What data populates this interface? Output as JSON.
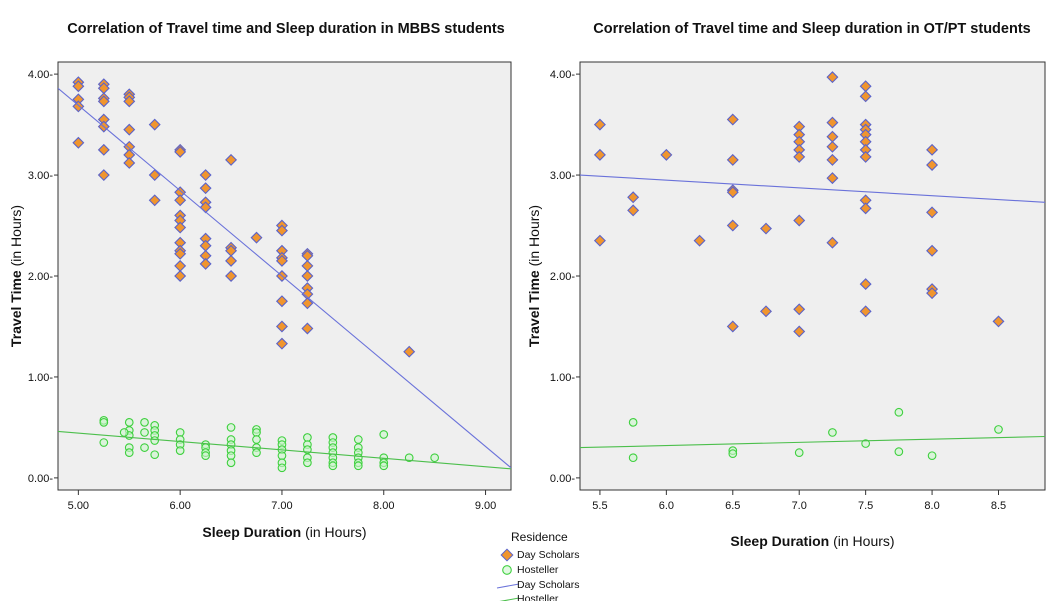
{
  "chart_data": [
    {
      "type": "scatter",
      "title": "Correlation of Travel time and Sleep duration in MBBS students",
      "xlabel": {
        "bold": "Sleep Duration",
        "normal": " (in Hours)"
      },
      "ylabel": {
        "bold": "Travel Time",
        "normal": " (in Hours)"
      },
      "xlim": [
        4.8,
        9.25
      ],
      "ylim": [
        -0.12,
        4.12
      ],
      "xticks": [
        5.0,
        6.0,
        7.0,
        8.0,
        9.0
      ],
      "xtick_labels": [
        "5.00",
        "6.00",
        "7.00",
        "8.00",
        "9.00"
      ],
      "yticks": [
        0,
        1,
        2,
        3,
        4
      ],
      "ytick_labels": [
        "0.00-",
        "1.00-",
        "2.00-",
        "3.00-",
        "4.00-"
      ],
      "grid": false,
      "series": [
        {
          "name": "Day Scholars",
          "marker": "diamond",
          "points": [
            [
              5.0,
              3.92
            ],
            [
              5.0,
              3.88
            ],
            [
              5.0,
              3.75
            ],
            [
              5.0,
              3.68
            ],
            [
              5.0,
              3.32
            ],
            [
              5.25,
              3.9
            ],
            [
              5.25,
              3.86
            ],
            [
              5.25,
              3.76
            ],
            [
              5.25,
              3.73
            ],
            [
              5.25,
              3.55
            ],
            [
              5.25,
              3.48
            ],
            [
              5.25,
              3.25
            ],
            [
              5.25,
              3.0
            ],
            [
              5.5,
              3.8
            ],
            [
              5.5,
              3.77
            ],
            [
              5.5,
              3.73
            ],
            [
              5.5,
              3.45
            ],
            [
              5.5,
              3.28
            ],
            [
              5.5,
              3.2
            ],
            [
              5.5,
              3.12
            ],
            [
              5.75,
              3.5
            ],
            [
              5.75,
              3.0
            ],
            [
              5.75,
              2.75
            ],
            [
              6.0,
              3.25
            ],
            [
              6.0,
              3.23
            ],
            [
              6.0,
              2.83
            ],
            [
              6.0,
              2.75
            ],
            [
              6.0,
              2.6
            ],
            [
              6.0,
              2.55
            ],
            [
              6.0,
              2.48
            ],
            [
              6.0,
              2.33
            ],
            [
              6.0,
              2.25
            ],
            [
              6.0,
              2.22
            ],
            [
              6.0,
              2.1
            ],
            [
              6.0,
              2.0
            ],
            [
              6.25,
              3.0
            ],
            [
              6.25,
              2.87
            ],
            [
              6.25,
              2.73
            ],
            [
              6.25,
              2.68
            ],
            [
              6.25,
              2.37
            ],
            [
              6.25,
              2.3
            ],
            [
              6.25,
              2.2
            ],
            [
              6.25,
              2.12
            ],
            [
              6.5,
              3.15
            ],
            [
              6.5,
              2.28
            ],
            [
              6.5,
              2.25
            ],
            [
              6.5,
              2.15
            ],
            [
              6.5,
              2.0
            ],
            [
              6.75,
              2.38
            ],
            [
              7.0,
              2.5
            ],
            [
              7.0,
              2.45
            ],
            [
              7.0,
              2.25
            ],
            [
              7.0,
              2.18
            ],
            [
              7.0,
              2.15
            ],
            [
              7.0,
              2.0
            ],
            [
              7.0,
              1.75
            ],
            [
              7.0,
              1.5
            ],
            [
              7.0,
              1.33
            ],
            [
              7.25,
              2.22
            ],
            [
              7.25,
              2.2
            ],
            [
              7.25,
              2.1
            ],
            [
              7.25,
              2.0
            ],
            [
              7.25,
              1.88
            ],
            [
              7.25,
              1.82
            ],
            [
              7.25,
              1.73
            ],
            [
              7.25,
              1.48
            ],
            [
              8.25,
              1.25
            ]
          ],
          "fit": {
            "x": [
              4.8,
              9.25
            ],
            "y": [
              3.86,
              0.1
            ]
          }
        },
        {
          "name": "Hosteller",
          "marker": "circle",
          "points": [
            [
              5.25,
              0.57
            ],
            [
              5.25,
              0.55
            ],
            [
              5.25,
              0.35
            ],
            [
              5.5,
              0.55
            ],
            [
              5.5,
              0.47
            ],
            [
              5.5,
              0.42
            ],
            [
              5.5,
              0.3
            ],
            [
              5.5,
              0.25
            ],
            [
              5.45,
              0.45
            ],
            [
              5.65,
              0.55
            ],
            [
              5.65,
              0.45
            ],
            [
              5.65,
              0.3
            ],
            [
              5.75,
              0.52
            ],
            [
              5.75,
              0.47
            ],
            [
              5.75,
              0.42
            ],
            [
              5.75,
              0.37
            ],
            [
              5.75,
              0.23
            ],
            [
              6.0,
              0.45
            ],
            [
              6.0,
              0.38
            ],
            [
              6.0,
              0.33
            ],
            [
              6.0,
              0.27
            ],
            [
              6.25,
              0.33
            ],
            [
              6.25,
              0.3
            ],
            [
              6.25,
              0.25
            ],
            [
              6.25,
              0.22
            ],
            [
              6.5,
              0.5
            ],
            [
              6.5,
              0.38
            ],
            [
              6.5,
              0.33
            ],
            [
              6.5,
              0.27
            ],
            [
              6.5,
              0.22
            ],
            [
              6.5,
              0.15
            ],
            [
              6.75,
              0.48
            ],
            [
              6.75,
              0.45
            ],
            [
              6.75,
              0.38
            ],
            [
              6.75,
              0.3
            ],
            [
              6.75,
              0.25
            ],
            [
              7.0,
              0.37
            ],
            [
              7.0,
              0.33
            ],
            [
              7.0,
              0.28
            ],
            [
              7.0,
              0.22
            ],
            [
              7.0,
              0.15
            ],
            [
              7.0,
              0.1
            ],
            [
              7.25,
              0.4
            ],
            [
              7.25,
              0.33
            ],
            [
              7.25,
              0.28
            ],
            [
              7.25,
              0.2
            ],
            [
              7.25,
              0.15
            ],
            [
              7.5,
              0.4
            ],
            [
              7.5,
              0.35
            ],
            [
              7.5,
              0.3
            ],
            [
              7.5,
              0.25
            ],
            [
              7.5,
              0.2
            ],
            [
              7.5,
              0.15
            ],
            [
              7.5,
              0.12
            ],
            [
              7.75,
              0.38
            ],
            [
              7.75,
              0.3
            ],
            [
              7.75,
              0.25
            ],
            [
              7.75,
              0.2
            ],
            [
              7.75,
              0.15
            ],
            [
              7.75,
              0.12
            ],
            [
              8.0,
              0.43
            ],
            [
              8.0,
              0.2
            ],
            [
              8.0,
              0.15
            ],
            [
              8.0,
              0.12
            ],
            [
              8.25,
              0.2
            ],
            [
              8.5,
              0.2
            ]
          ],
          "fit": {
            "x": [
              4.8,
              9.25
            ],
            "y": [
              0.46,
              0.09
            ]
          }
        }
      ]
    },
    {
      "type": "scatter",
      "title": "Correlation of Travel time and Sleep duration in OT/PT students",
      "xlabel": {
        "bold": "Sleep Duration",
        "normal": " (in Hours)"
      },
      "ylabel": {
        "bold": "Travel Time",
        "normal": " (in Hours)"
      },
      "xlim": [
        5.35,
        8.85
      ],
      "ylim": [
        -0.12,
        4.12
      ],
      "xticks": [
        5.5,
        6.0,
        6.5,
        7.0,
        7.5,
        8.0,
        8.5
      ],
      "xtick_labels": [
        "5.5",
        "6.0",
        "6.5",
        "7.0",
        "7.5",
        "8.0",
        "8.5"
      ],
      "yticks": [
        0,
        1,
        2,
        3,
        4
      ],
      "ytick_labels": [
        "0.00-",
        "1.00-",
        "2.00-",
        "3.00-",
        "4.00-"
      ],
      "grid": false,
      "series": [
        {
          "name": "Day Scholars",
          "marker": "diamond",
          "points": [
            [
              5.5,
              3.5
            ],
            [
              5.5,
              3.2
            ],
            [
              5.5,
              2.35
            ],
            [
              5.75,
              2.78
            ],
            [
              5.75,
              2.65
            ],
            [
              6.0,
              3.2
            ],
            [
              6.25,
              2.35
            ],
            [
              6.5,
              3.55
            ],
            [
              6.5,
              3.15
            ],
            [
              6.5,
              2.85
            ],
            [
              6.5,
              2.83
            ],
            [
              6.5,
              2.5
            ],
            [
              6.5,
              1.5
            ],
            [
              6.75,
              2.47
            ],
            [
              6.75,
              1.65
            ],
            [
              7.0,
              3.48
            ],
            [
              7.0,
              3.4
            ],
            [
              7.0,
              3.33
            ],
            [
              7.0,
              3.25
            ],
            [
              7.0,
              3.18
            ],
            [
              7.0,
              2.55
            ],
            [
              7.0,
              1.67
            ],
            [
              7.0,
              1.45
            ],
            [
              7.25,
              3.97
            ],
            [
              7.25,
              3.52
            ],
            [
              7.25,
              3.38
            ],
            [
              7.25,
              3.28
            ],
            [
              7.25,
              3.15
            ],
            [
              7.25,
              2.97
            ],
            [
              7.25,
              2.33
            ],
            [
              7.5,
              3.88
            ],
            [
              7.5,
              3.78
            ],
            [
              7.5,
              3.5
            ],
            [
              7.5,
              3.45
            ],
            [
              7.5,
              3.4
            ],
            [
              7.5,
              3.33
            ],
            [
              7.5,
              3.25
            ],
            [
              7.5,
              3.18
            ],
            [
              7.5,
              2.75
            ],
            [
              7.5,
              2.67
            ],
            [
              7.5,
              1.92
            ],
            [
              7.5,
              1.65
            ],
            [
              8.0,
              3.25
            ],
            [
              8.0,
              3.1
            ],
            [
              8.0,
              2.63
            ],
            [
              8.0,
              2.25
            ],
            [
              8.0,
              1.87
            ],
            [
              8.0,
              1.83
            ],
            [
              8.5,
              1.55
            ]
          ],
          "fit": {
            "x": [
              5.35,
              8.85
            ],
            "y": [
              3.0,
              2.73
            ]
          }
        },
        {
          "name": "Hosteller",
          "marker": "circle",
          "points": [
            [
              5.75,
              0.55
            ],
            [
              5.75,
              0.2
            ],
            [
              6.5,
              0.27
            ],
            [
              6.5,
              0.24
            ],
            [
              7.0,
              0.25
            ],
            [
              7.25,
              0.45
            ],
            [
              7.5,
              0.34
            ],
            [
              7.75,
              0.65
            ],
            [
              7.75,
              0.26
            ],
            [
              8.0,
              0.22
            ],
            [
              8.5,
              0.48
            ]
          ],
          "fit": {
            "x": [
              5.35,
              8.85
            ],
            "y": [
              0.3,
              0.41
            ]
          }
        }
      ]
    }
  ],
  "legend": {
    "title": "Residence",
    "entries": [
      {
        "label": "Day Scholars",
        "kind": "diamond"
      },
      {
        "label": "Hosteller",
        "kind": "circle"
      },
      {
        "label": "Day Scholars",
        "kind": "line-blue"
      },
      {
        "label": "Hosteller",
        "kind": "line-green"
      }
    ]
  },
  "colors": {
    "plot_bg": "#efefef",
    "diamond_fill": "#f0952e",
    "diamond_stroke": "#5b63c9",
    "circle_stroke": "#3ed03e",
    "circle_fill": "#ccf5cc",
    "fit_blue": "#6a72da",
    "fit_green": "#4cbf4c",
    "axis": "#333333"
  }
}
